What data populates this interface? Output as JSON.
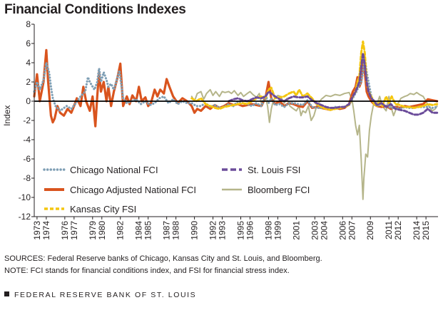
{
  "chart_data": {
    "type": "line",
    "title": "Financial Conditions Indexes",
    "ylabel": "Index",
    "xlabel": "",
    "ylim": [
      -12,
      8
    ],
    "xlim": [
      1973.0,
      2016.6
    ],
    "yticks": [
      8,
      6,
      4,
      2,
      0,
      -2,
      -4,
      -6,
      -8,
      -10,
      -12
    ],
    "xtick_labels": [
      "1973",
      "1974",
      "1976",
      "1977",
      "1979",
      "1980",
      "1982",
      "1984",
      "1985",
      "1987",
      "1988",
      "1990",
      "1992",
      "1993",
      "1995",
      "1996",
      "1998",
      "1999",
      "2001",
      "2003",
      "2004",
      "2006",
      "2007",
      "2009",
      "2011",
      "2012",
      "2014",
      "2015"
    ],
    "zero_line": true,
    "grid": false,
    "legend_position": "bottom-left",
    "series": [
      {
        "name": "Chicago National FCI",
        "color": "#7f9fb5",
        "style": "dotted",
        "x": [
          1973.0,
          1973.3,
          1973.6,
          1974.0,
          1974.3,
          1974.6,
          1974.8,
          1975.0,
          1975.3,
          1975.8,
          1976.5,
          1977.0,
          1977.5,
          1978.0,
          1978.5,
          1978.8,
          1979.0,
          1979.5,
          1979.8,
          1980.0,
          1980.2,
          1980.5,
          1980.8,
          1981.0,
          1981.3,
          1981.6,
          1982.0,
          1982.2,
          1982.6,
          1983.0,
          1983.5,
          1984.0,
          1984.5,
          1985.0,
          1985.5,
          1986.0,
          1986.5,
          1987.0,
          1987.5,
          1988.0,
          1988.5,
          1989.0,
          1989.5,
          1990.0,
          1990.5,
          1991.0,
          1991.5,
          1992.0,
          1992.5,
          1993.0,
          1993.5,
          1994.0,
          1994.5,
          1995.0,
          1995.5,
          1996.0,
          1996.5,
          1997.0,
          1997.5,
          1998.0,
          1998.3,
          1998.6,
          1999.0,
          1999.5,
          2000.0,
          2000.5,
          2001.0,
          2001.5,
          2002.0,
          2002.5,
          2003.0,
          2003.5,
          2004.0,
          2004.5,
          2005.0,
          2005.5,
          2006.0,
          2006.5,
          2007.0,
          2007.5,
          2007.8,
          2008.0,
          2008.3,
          2008.5,
          2008.7,
          2008.9,
          2009.1,
          2009.4,
          2009.7,
          2010.0,
          2010.5,
          2011.0,
          2011.5,
          2012.0,
          2012.5,
          2013.0,
          2013.5,
          2014.0,
          2014.5,
          2015.0,
          2015.5,
          2016.0,
          2016.5
        ],
        "values": [
          1.0,
          2.0,
          1.2,
          2.2,
          4.0,
          3.0,
          1.5,
          0.3,
          -0.5,
          -1.0,
          -0.5,
          -0.8,
          -0.2,
          0.5,
          1.0,
          2.5,
          2.0,
          1.2,
          2.0,
          3.4,
          2.0,
          3.0,
          2.2,
          1.5,
          1.8,
          1.2,
          2.5,
          3.2,
          0.3,
          -0.2,
          0.0,
          0.2,
          -0.3,
          0.0,
          -0.4,
          -0.2,
          0.3,
          0.5,
          -0.2,
          0.2,
          -0.3,
          0.0,
          -0.2,
          -0.2,
          -0.5,
          -0.5,
          -0.2,
          -0.6,
          -0.4,
          -0.7,
          -0.6,
          -0.3,
          -0.5,
          0.0,
          -0.2,
          -0.3,
          -0.5,
          -0.2,
          -0.5,
          0.6,
          -0.2,
          0.3,
          -0.4,
          -0.3,
          -0.6,
          -0.2,
          -0.2,
          -0.3,
          -0.4,
          0.1,
          -0.6,
          -0.7,
          -0.7,
          -0.7,
          -0.8,
          -0.6,
          -0.7,
          -0.6,
          -0.4,
          0.5,
          1.0,
          1.5,
          2.0,
          3.0,
          4.5,
          3.0,
          2.0,
          0.5,
          0.0,
          -0.5,
          -0.3,
          -0.5,
          -0.7,
          -0.7,
          -0.8,
          -0.6,
          -0.7,
          -0.7,
          -0.6,
          -0.6,
          -0.6,
          -0.7,
          -0.6
        ]
      },
      {
        "name": "Chicago Adjusted National FCI",
        "color": "#d9541e",
        "style": "solid",
        "x": [
          1973.0,
          1973.3,
          1973.6,
          1974.0,
          1974.3,
          1974.5,
          1974.8,
          1975.0,
          1975.2,
          1975.5,
          1975.8,
          1976.2,
          1976.6,
          1977.0,
          1977.3,
          1977.6,
          1978.0,
          1978.3,
          1978.6,
          1979.0,
          1979.3,
          1979.6,
          1979.8,
          1980.0,
          1980.2,
          1980.5,
          1980.8,
          1981.0,
          1981.3,
          1981.6,
          1982.0,
          1982.3,
          1982.6,
          1983.0,
          1983.3,
          1983.6,
          1984.0,
          1984.3,
          1984.6,
          1985.0,
          1985.3,
          1985.6,
          1986.0,
          1986.3,
          1986.6,
          1987.0,
          1987.3,
          1987.6,
          1988.0,
          1988.5,
          1989.0,
          1989.5,
          1990.0,
          1990.3,
          1990.6,
          1991.0,
          1991.5,
          1992.0,
          1992.5,
          1993.0,
          1993.5,
          1994.0,
          1994.5,
          1995.0,
          1995.5,
          1996.0,
          1996.5,
          1997.0,
          1997.5,
          1998.0,
          1998.3,
          1998.6,
          1999.0,
          1999.5,
          2000.0,
          2000.5,
          2001.0,
          2001.5,
          2002.0,
          2002.5,
          2003.0,
          2003.5,
          2004.0,
          2004.5,
          2005.0,
          2005.5,
          2006.0,
          2006.5,
          2007.0,
          2007.4,
          2007.7,
          2007.9,
          2008.1,
          2008.3,
          2008.5,
          2008.7,
          2008.9,
          2009.1,
          2009.4,
          2009.7,
          2010.0,
          2010.5,
          2011.0,
          2011.5,
          2012.0,
          2012.5,
          2013.0,
          2013.5,
          2014.0,
          2014.5,
          2015.0,
          2015.5,
          2016.0,
          2016.5
        ],
        "values": [
          0.5,
          2.8,
          0.0,
          2.0,
          5.3,
          2.0,
          -1.5,
          -2.2,
          -1.8,
          -0.5,
          -1.2,
          -1.5,
          -0.8,
          -1.2,
          -0.5,
          0.3,
          -0.5,
          1.5,
          0.0,
          -1.0,
          0.5,
          -2.6,
          0.5,
          3.0,
          1.0,
          2.0,
          0.0,
          1.5,
          -0.5,
          1.0,
          2.5,
          3.9,
          -0.5,
          0.5,
          -0.3,
          0.6,
          0.0,
          1.5,
          0.0,
          0.4,
          -0.5,
          -0.2,
          1.2,
          0.5,
          1.2,
          0.8,
          2.3,
          1.5,
          0.5,
          -0.2,
          0.3,
          0.0,
          -0.5,
          -1.2,
          -0.8,
          -1.0,
          -0.5,
          -0.8,
          -0.4,
          -0.7,
          -0.5,
          -0.2,
          -0.4,
          -0.3,
          -0.5,
          -0.4,
          -0.3,
          -0.4,
          -0.5,
          0.5,
          2.0,
          0.3,
          -0.3,
          0.0,
          -0.5,
          -0.2,
          -0.3,
          -0.5,
          -0.6,
          0.0,
          -0.7,
          -0.6,
          -0.7,
          -0.8,
          -0.9,
          -0.7,
          -0.8,
          -0.7,
          -0.3,
          1.0,
          1.5,
          2.5,
          1.5,
          2.0,
          4.0,
          3.0,
          1.0,
          0.5,
          0.0,
          -0.3,
          -0.5,
          -0.6,
          -0.5,
          -0.8,
          -0.6,
          -0.7,
          -0.5,
          -0.6,
          -0.5,
          -0.4,
          -0.3,
          0.2,
          0.1,
          0.0
        ]
      },
      {
        "name": "Kansas City FSI",
        "color": "#f4c60f",
        "style": "dashed",
        "x": [
          1990.0,
          1990.5,
          1991.0,
          1991.5,
          1992.0,
          1992.5,
          1993.0,
          1993.5,
          1994.0,
          1994.5,
          1995.0,
          1995.5,
          1996.0,
          1996.5,
          1997.0,
          1997.5,
          1998.0,
          1998.3,
          1998.6,
          1999.0,
          1999.5,
          2000.0,
          2000.5,
          2001.0,
          2001.3,
          2001.6,
          2002.0,
          2002.5,
          2003.0,
          2003.5,
          2004.0,
          2004.5,
          2005.0,
          2005.5,
          2006.0,
          2006.5,
          2007.0,
          2007.4,
          2007.7,
          2007.9,
          2008.1,
          2008.3,
          2008.5,
          2008.7,
          2008.9,
          2009.1,
          2009.4,
          2009.7,
          2010.0,
          2010.3,
          2010.6,
          2011.0,
          2011.3,
          2011.6,
          2012.0,
          2012.5,
          2013.0,
          2013.5,
          2014.0,
          2014.5,
          2015.0,
          2015.5,
          2016.0,
          2016.5
        ],
        "values": [
          0.3,
          0.0,
          0.3,
          -0.3,
          -0.5,
          -0.7,
          -0.8,
          -0.6,
          -0.5,
          -0.4,
          -0.3,
          -0.2,
          -0.3,
          0.0,
          0.3,
          0.5,
          0.4,
          1.2,
          1.4,
          0.3,
          0.4,
          0.5,
          0.8,
          1.0,
          0.6,
          1.2,
          0.5,
          0.8,
          0.3,
          -0.3,
          -0.6,
          -0.8,
          -0.9,
          -0.8,
          -0.7,
          -0.6,
          -0.4,
          0.5,
          1.0,
          2.0,
          2.5,
          5.0,
          6.2,
          5.0,
          2.0,
          1.0,
          0.5,
          -0.3,
          -0.5,
          0.0,
          -0.5,
          0.5,
          -0.2,
          0.5,
          -0.3,
          -0.4,
          -0.6,
          -0.6,
          -0.7,
          -0.6,
          -0.5,
          -0.3,
          -0.4,
          -0.3
        ]
      },
      {
        "name": "St. Louis FSI",
        "color": "#6b4c9a",
        "style": "dashed",
        "x": [
          1994.0,
          1994.5,
          1995.0,
          1995.5,
          1996.0,
          1996.5,
          1997.0,
          1997.5,
          1998.0,
          1998.3,
          1998.6,
          1999.0,
          1999.5,
          2000.0,
          2000.5,
          2001.0,
          2001.5,
          2002.0,
          2002.5,
          2003.0,
          2003.5,
          2004.0,
          2004.5,
          2005.0,
          2005.5,
          2006.0,
          2006.5,
          2007.0,
          2007.4,
          2007.7,
          2007.9,
          2008.1,
          2008.3,
          2008.5,
          2008.7,
          2008.9,
          2009.1,
          2009.4,
          2009.7,
          2010.0,
          2010.5,
          2011.0,
          2011.5,
          2012.0,
          2012.5,
          2013.0,
          2013.5,
          2014.0,
          2014.5,
          2015.0,
          2015.5,
          2016.0,
          2016.5
        ],
        "values": [
          0.0,
          0.2,
          0.3,
          0.1,
          0.0,
          0.2,
          0.4,
          0.3,
          0.5,
          1.0,
          0.8,
          0.5,
          0.2,
          0.0,
          0.3,
          0.5,
          0.4,
          0.4,
          0.5,
          0.1,
          -0.2,
          -0.4,
          -0.6,
          -0.7,
          -0.7,
          -0.6,
          -0.6,
          -0.3,
          0.5,
          1.0,
          1.5,
          2.0,
          3.5,
          5.0,
          3.8,
          2.0,
          1.0,
          0.3,
          0.0,
          -0.4,
          -0.2,
          -0.6,
          -0.3,
          -0.8,
          -0.9,
          -1.0,
          -1.2,
          -1.4,
          -1.4,
          -1.2,
          -0.8,
          -1.2,
          -1.2
        ]
      },
      {
        "name": "Bloomberg FCI",
        "color": "#b5b58a",
        "style": "solid",
        "x": [
          1990.0,
          1990.3,
          1990.6,
          1991.0,
          1991.3,
          1991.6,
          1992.0,
          1992.3,
          1992.6,
          1993.0,
          1993.3,
          1993.6,
          1994.0,
          1994.3,
          1994.6,
          1995.0,
          1995.3,
          1995.6,
          1996.0,
          1996.3,
          1996.6,
          1997.0,
          1997.3,
          1997.6,
          1998.0,
          1998.2,
          1998.4,
          1998.6,
          1998.8,
          1999.0,
          1999.3,
          1999.6,
          2000.0,
          2000.3,
          2000.6,
          2001.0,
          2001.3,
          2001.6,
          2001.8,
          2002.0,
          2002.3,
          2002.6,
          2002.9,
          2003.2,
          2003.5,
          2004.0,
          2004.5,
          2005.0,
          2005.5,
          2006.0,
          2006.5,
          2007.0,
          2007.3,
          2007.5,
          2007.7,
          2007.9,
          2008.1,
          2008.3,
          2008.5,
          2008.6,
          2008.8,
          2009.0,
          2009.2,
          2009.4,
          2009.6,
          2009.8,
          2010.0,
          2010.3,
          2010.6,
          2011.0,
          2011.3,
          2011.5,
          2011.8,
          2012.0,
          2012.3,
          2012.6,
          2013.0,
          2013.3,
          2013.6,
          2014.0,
          2014.3,
          2014.6,
          2015.0,
          2015.3,
          2015.6,
          2016.0,
          2016.3,
          2016.5
        ],
        "values": [
          0.5,
          0.0,
          0.8,
          1.0,
          0.2,
          0.8,
          1.2,
          0.6,
          1.0,
          0.5,
          1.0,
          0.9,
          1.0,
          0.8,
          1.1,
          0.6,
          0.9,
          0.5,
          0.8,
          1.0,
          0.7,
          0.4,
          0.8,
          -0.5,
          0.3,
          -0.5,
          -2.2,
          -0.8,
          0.0,
          0.3,
          0.6,
          0.5,
          -0.2,
          0.3,
          -0.5,
          -0.8,
          -1.0,
          -0.5,
          -1.5,
          -1.0,
          -1.2,
          -0.5,
          -2.0,
          -1.5,
          -0.5,
          0.2,
          0.6,
          0.5,
          0.7,
          0.6,
          0.8,
          0.9,
          0.2,
          -1.0,
          -2.5,
          -3.5,
          -2.5,
          -6.0,
          -10.2,
          -8.0,
          -5.5,
          -5.8,
          -3.0,
          -1.5,
          -0.5,
          0.0,
          -0.3,
          0.5,
          -0.5,
          -1.0,
          0.5,
          -0.5,
          -1.5,
          -1.0,
          -0.2,
          0.3,
          0.5,
          0.6,
          0.8,
          0.7,
          0.9,
          0.7,
          0.5,
          0.0,
          -0.5,
          -1.0,
          -0.8,
          -0.5
        ]
      }
    ]
  },
  "legend": [
    {
      "label": "Chicago National FCI",
      "series": 0
    },
    {
      "label": "St. Louis FSI",
      "series": 3
    },
    {
      "label": "Chicago Adjusted National FCI",
      "series": 1
    },
    {
      "label": "Bloomberg FCI",
      "series": 4
    },
    {
      "label": "Kansas City FSI",
      "series": 2
    }
  ],
  "notes": {
    "sources": "SOURCES: Federal Reserve banks of Chicago, Kansas City and St. Louis, and Bloomberg.",
    "note": "NOTE: FCI stands for financial conditions index, and FSI for financial stress index."
  },
  "footer": "FEDERAL RESERVE BANK OF ST. LOUIS"
}
